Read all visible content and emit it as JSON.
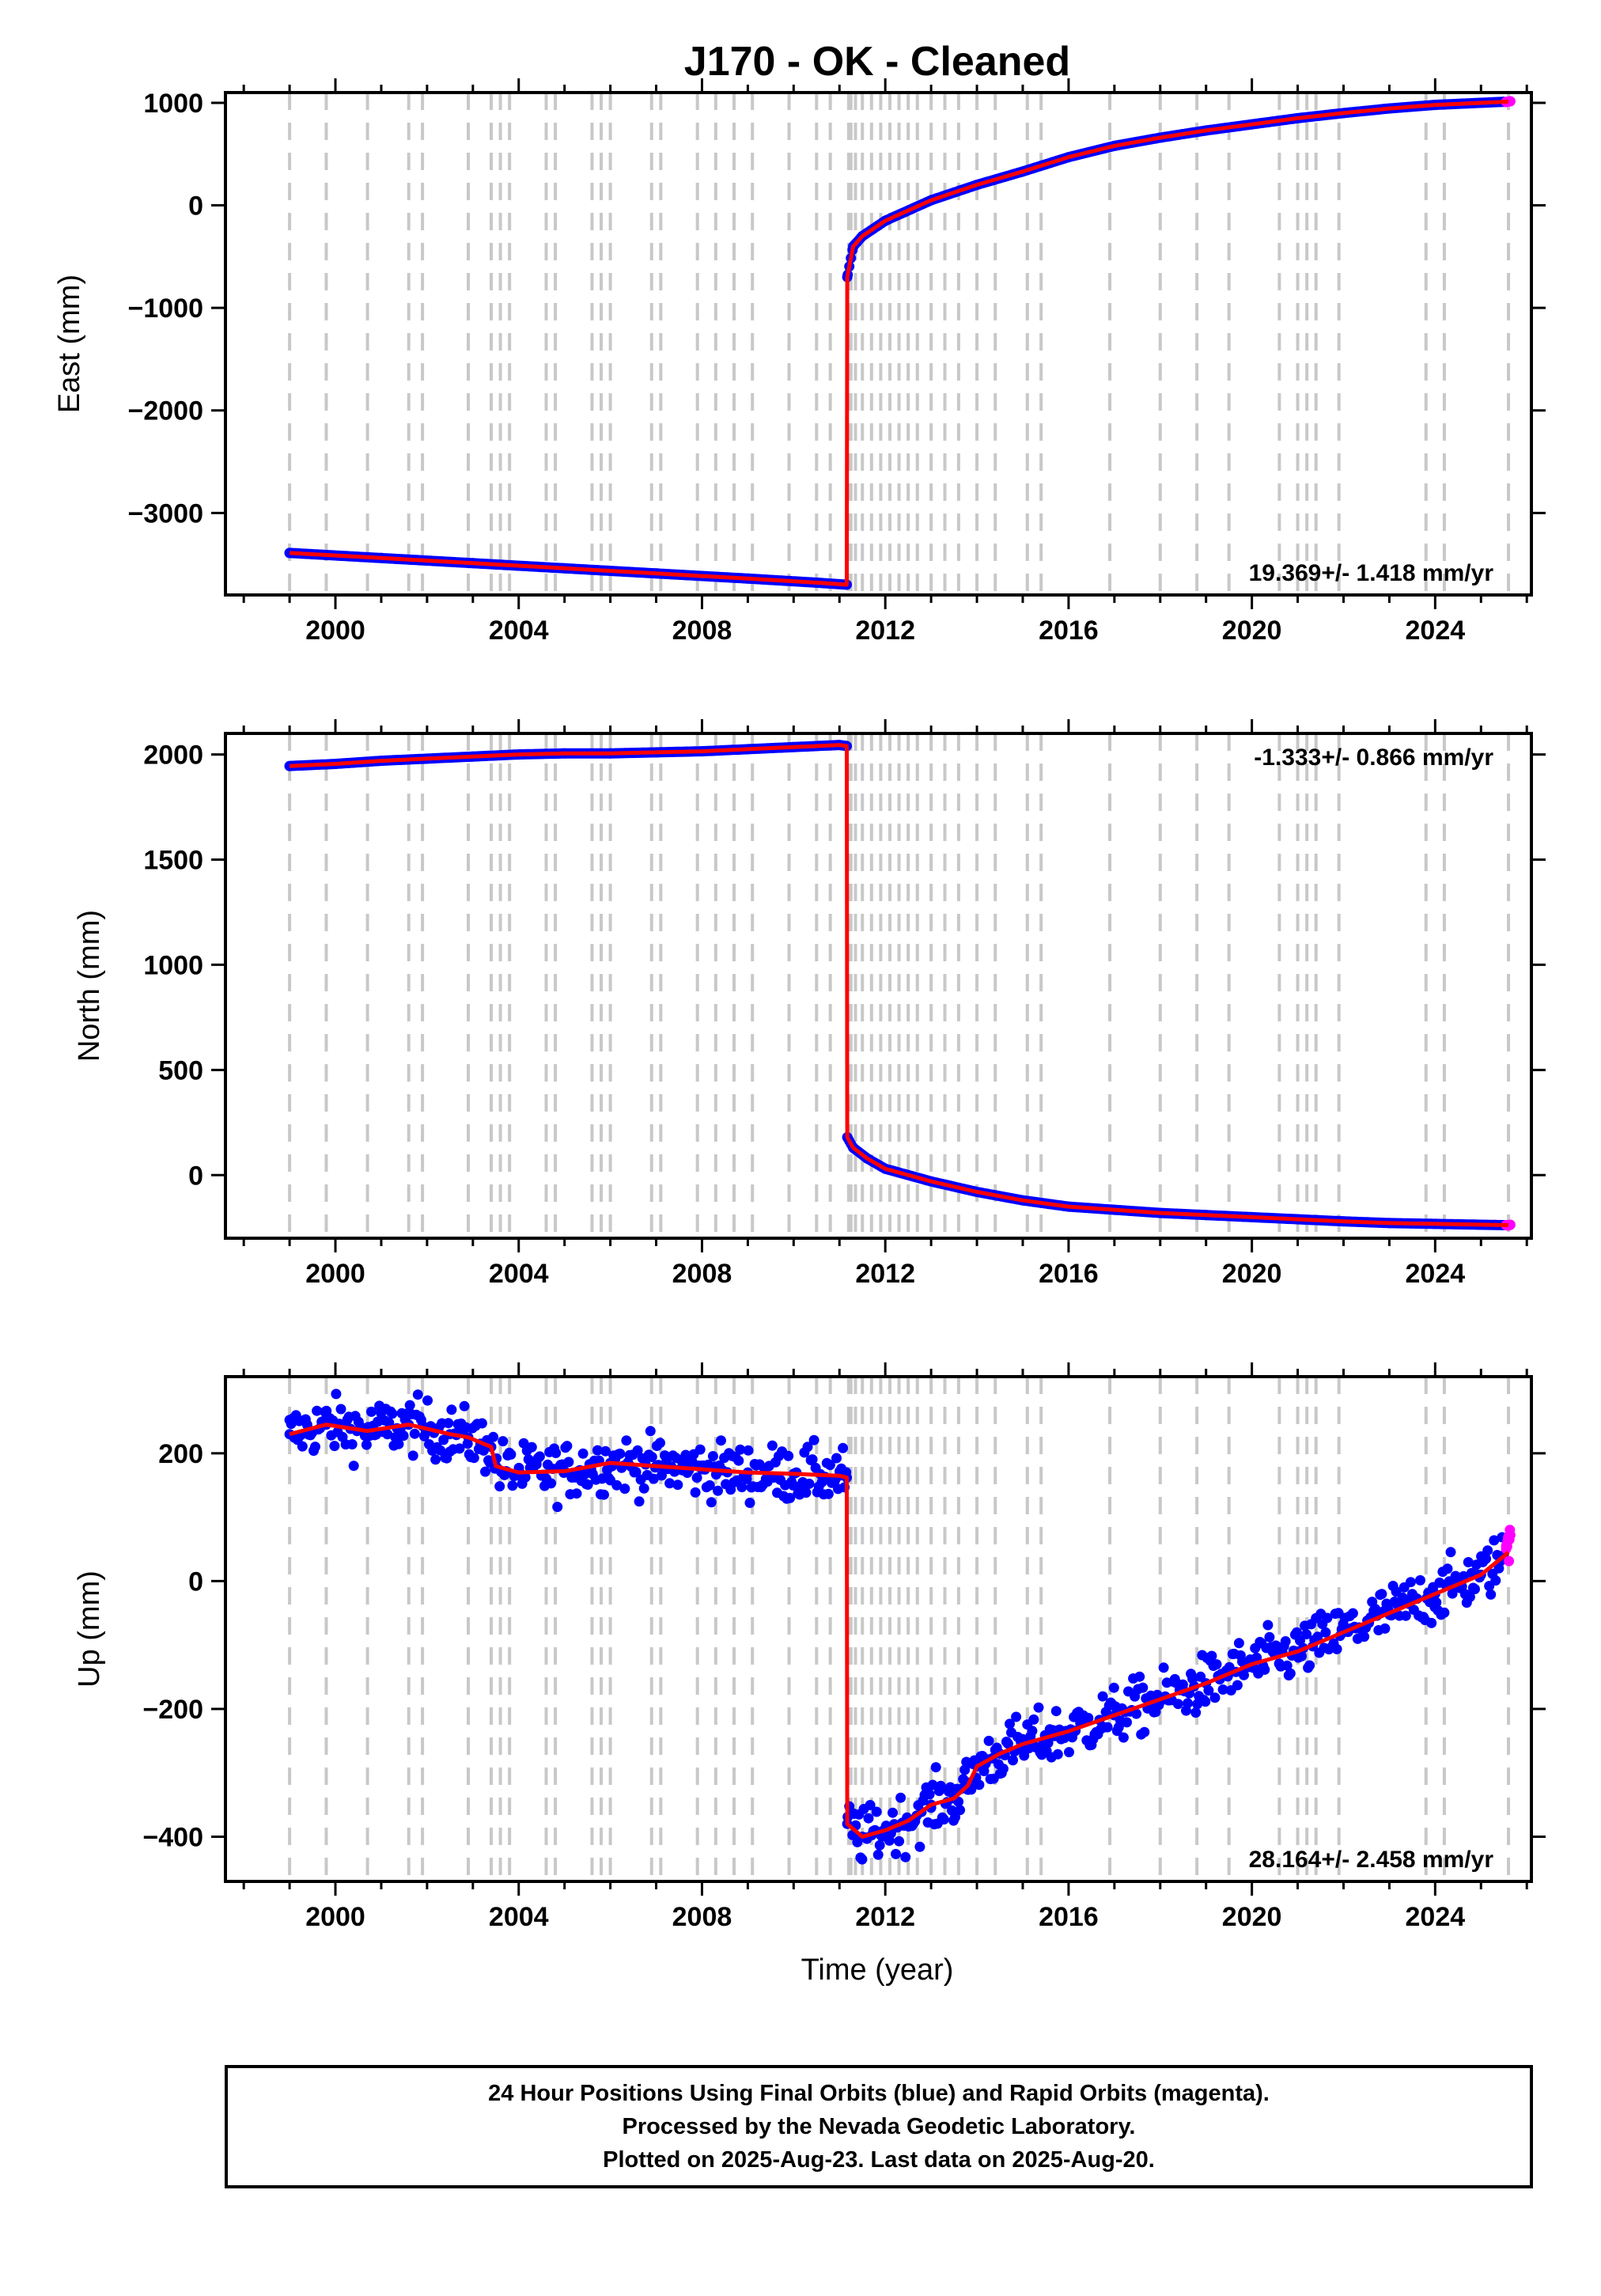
{
  "figure": {
    "title": "J170  - OK - Cleaned",
    "xlabel": "Time (year)",
    "colors": {
      "final_orbits": "#0000ff",
      "rapid_orbits": "#ff00ff",
      "model": "#ff0000",
      "event_lines": "#c8c8c8",
      "frame": "#000000"
    },
    "footer": {
      "line1": "24 Hour Positions Using Final Orbits (blue) and Rapid Orbits (magenta).",
      "line2": "Processed by the Nevada Geodetic Laboratory.",
      "line3": "Plotted on 2025-Aug-23. Last data on 2025-Aug-20."
    }
  },
  "chart_data": [
    {
      "type": "scatter",
      "title": "J170  - OK - Cleaned",
      "xlabel": "",
      "ylabel": "East (mm)",
      "xlim": [
        1997.6,
        2026.1
      ],
      "ylim": [
        -3800,
        1100
      ],
      "xticks": [
        2000,
        2004,
        2008,
        2012,
        2016,
        2020,
        2024
      ],
      "yticks": [
        -3000,
        -2000,
        -1000,
        0,
        1000
      ],
      "grid": false,
      "rate_text": "19.369+/- 1.418 mm/yr",
      "rate_position": "bottom-right",
      "event_lines": [
        1999.0,
        1999.8,
        2000.7,
        2001.6,
        2001.9,
        2002.9,
        2003.4,
        2003.6,
        2003.8,
        2004.6,
        2004.8,
        2005.6,
        2005.8,
        2006.0,
        2006.9,
        2007.1,
        2007.9,
        2008.3,
        2008.7,
        2009.1,
        2009.9,
        2010.5,
        2010.8,
        2011.2,
        2011.25,
        2011.35,
        2011.5,
        2011.7,
        2011.9,
        2012.1,
        2012.3,
        2012.5,
        2012.7,
        2013.0,
        2013.3,
        2013.6,
        2014.0,
        2014.4,
        2015.1,
        2015.4,
        2016.9,
        2018.0,
        2018.8,
        2019.5,
        2020.6,
        2021.0,
        2021.2,
        2021.4,
        2021.9,
        2023.8,
        2024.2,
        2025.6
      ],
      "series": [
        {
          "name": "Final Orbits",
          "color": "#0000ff",
          "x": [
            1999.0,
            2001.0,
            2003.0,
            2005.0,
            2007.0,
            2009.0,
            2010.5,
            2011.16,
            2011.17,
            2011.3,
            2011.5,
            2012.0,
            2013.0,
            2014.0,
            2015.0,
            2016.0,
            2017.0,
            2018.0,
            2019.0,
            2020.0,
            2021.0,
            2022.0,
            2023.0,
            2024.0,
            2025.5
          ],
          "y": [
            -3390,
            -3440,
            -3490,
            -3540,
            -3590,
            -3640,
            -3680,
            -3700,
            -700,
            -400,
            -300,
            -150,
            50,
            200,
            330,
            470,
            580,
            660,
            730,
            790,
            850,
            900,
            945,
            980,
            1010
          ]
        },
        {
          "name": "Rapid Orbits",
          "color": "#ff00ff",
          "x": [
            2025.55,
            2025.6,
            2025.64
          ],
          "y": [
            1008,
            1012,
            1015
          ]
        }
      ],
      "model": {
        "color": "#ff0000",
        "x": [
          1999.0,
          2001.0,
          2003.0,
          2005.0,
          2007.0,
          2009.0,
          2010.5,
          2011.16,
          2011.17,
          2011.3,
          2011.5,
          2012.0,
          2013.0,
          2014.0,
          2015.0,
          2016.0,
          2017.0,
          2018.0,
          2019.0,
          2020.0,
          2021.0,
          2022.0,
          2023.0,
          2024.0,
          2025.6
        ],
        "y": [
          -3390,
          -3440,
          -3490,
          -3540,
          -3590,
          -3640,
          -3680,
          -3700,
          -700,
          -400,
          -300,
          -150,
          50,
          200,
          330,
          470,
          580,
          660,
          730,
          790,
          850,
          900,
          945,
          980,
          1012
        ]
      }
    },
    {
      "type": "scatter",
      "title": "",
      "xlabel": "",
      "ylabel": "North (mm)",
      "xlim": [
        1997.6,
        2026.1
      ],
      "ylim": [
        -300,
        2100
      ],
      "xticks": [
        2000,
        2004,
        2008,
        2012,
        2016,
        2020,
        2024
      ],
      "yticks": [
        0,
        500,
        1000,
        1500,
        2000
      ],
      "grid": false,
      "rate_text": "-1.333+/- 0.866 mm/yr",
      "rate_position": "top-right",
      "event_lines": [
        1999.0,
        1999.8,
        2000.7,
        2001.6,
        2001.9,
        2002.9,
        2003.4,
        2003.6,
        2003.8,
        2004.6,
        2004.8,
        2005.6,
        2005.8,
        2006.0,
        2006.9,
        2007.1,
        2007.9,
        2008.3,
        2008.7,
        2009.1,
        2009.9,
        2010.5,
        2010.8,
        2011.2,
        2011.25,
        2011.35,
        2011.5,
        2011.7,
        2011.9,
        2012.1,
        2012.3,
        2012.5,
        2012.7,
        2013.0,
        2013.3,
        2013.6,
        2014.0,
        2014.4,
        2015.1,
        2015.4,
        2016.9,
        2018.0,
        2018.8,
        2019.5,
        2020.6,
        2021.0,
        2021.2,
        2021.4,
        2021.9,
        2023.8,
        2024.2,
        2025.6
      ],
      "series": [
        {
          "name": "Final Orbits",
          "color": "#0000ff",
          "x": [
            1999.0,
            2000.0,
            2001.0,
            2002.0,
            2003.0,
            2004.0,
            2005.0,
            2006.0,
            2007.0,
            2008.0,
            2009.0,
            2010.0,
            2011.0,
            2011.16,
            2011.17,
            2011.3,
            2011.6,
            2012.0,
            2013.0,
            2014.0,
            2015.0,
            2016.0,
            2017.0,
            2018.0,
            2019.0,
            2020.0,
            2021.0,
            2022.0,
            2023.0,
            2024.0,
            2025.5
          ],
          "y": [
            1945,
            1955,
            1970,
            1980,
            1990,
            2000,
            2005,
            2005,
            2010,
            2015,
            2025,
            2035,
            2045,
            2040,
            180,
            130,
            80,
            30,
            -30,
            -80,
            -120,
            -150,
            -165,
            -180,
            -190,
            -200,
            -210,
            -220,
            -228,
            -232,
            -238
          ]
        },
        {
          "name": "Rapid Orbits",
          "color": "#ff00ff",
          "x": [
            2025.55,
            2025.6,
            2025.64
          ],
          "y": [
            -238,
            -240,
            -236
          ]
        }
      ],
      "model": {
        "color": "#ff0000",
        "x": [
          1999.0,
          2000.0,
          2001.0,
          2002.0,
          2003.0,
          2004.0,
          2005.0,
          2006.0,
          2007.0,
          2008.0,
          2009.0,
          2010.0,
          2011.0,
          2011.16,
          2011.17,
          2011.3,
          2011.6,
          2012.0,
          2013.0,
          2014.0,
          2015.0,
          2016.0,
          2017.0,
          2018.0,
          2019.0,
          2020.0,
          2021.0,
          2022.0,
          2023.0,
          2024.0,
          2025.6
        ],
        "y": [
          1945,
          1955,
          1970,
          1980,
          1990,
          2000,
          2005,
          2005,
          2010,
          2015,
          2025,
          2035,
          2045,
          2040,
          180,
          130,
          80,
          30,
          -30,
          -80,
          -120,
          -150,
          -165,
          -180,
          -190,
          -200,
          -210,
          -220,
          -228,
          -232,
          -238
        ]
      }
    },
    {
      "type": "scatter",
      "title": "",
      "xlabel": "Time (year)",
      "ylabel": "Up (mm)",
      "xlim": [
        1997.6,
        2026.1
      ],
      "ylim": [
        -470,
        320
      ],
      "xticks": [
        2000,
        2004,
        2008,
        2012,
        2016,
        2020,
        2024
      ],
      "yticks": [
        -400,
        -200,
        0,
        200
      ],
      "grid": false,
      "rate_text": "28.164+/- 2.458 mm/yr",
      "rate_position": "bottom-right",
      "event_lines": [
        1999.0,
        1999.8,
        2000.7,
        2001.6,
        2001.9,
        2002.9,
        2003.4,
        2003.6,
        2003.8,
        2004.6,
        2004.8,
        2005.6,
        2005.8,
        2006.0,
        2006.9,
        2007.1,
        2007.9,
        2008.3,
        2008.7,
        2009.1,
        2009.9,
        2010.5,
        2010.8,
        2011.2,
        2011.25,
        2011.35,
        2011.5,
        2011.7,
        2011.9,
        2012.1,
        2012.3,
        2012.5,
        2012.7,
        2013.0,
        2013.3,
        2013.6,
        2014.0,
        2014.4,
        2015.1,
        2015.4,
        2016.9,
        2018.0,
        2018.8,
        2019.5,
        2020.6,
        2021.0,
        2021.2,
        2021.4,
        2021.9,
        2023.8,
        2024.2,
        2025.6
      ],
      "scatter_spread": 22,
      "series": [
        {
          "name": "Final Orbits",
          "color": "#0000ff",
          "x": [
            1999.0,
            1999.8,
            2000.7,
            2001.6,
            2002.5,
            2002.9,
            2003.4,
            2003.5,
            2004.0,
            2005.0,
            2006.0,
            2007.0,
            2008.0,
            2009.0,
            2010.0,
            2011.0,
            2011.16,
            2011.17,
            2011.5,
            2012.0,
            2012.5,
            2013.0,
            2013.5,
            2013.8,
            2014.0,
            2014.5,
            2015.0,
            2016.0,
            2017.0,
            2018.0,
            2019.0,
            2020.0,
            2021.0,
            2022.0,
            2023.0,
            2024.0,
            2025.0,
            2025.5
          ],
          "y": [
            230,
            245,
            235,
            245,
            230,
            225,
            210,
            180,
            170,
            172,
            185,
            180,
            175,
            170,
            168,
            165,
            162,
            -380,
            -400,
            -390,
            -375,
            -350,
            -340,
            -320,
            -290,
            -270,
            -255,
            -235,
            -210,
            -185,
            -160,
            -130,
            -110,
            -80,
            -50,
            -20,
            10,
            35
          ]
        },
        {
          "name": "Rapid Orbits",
          "color": "#ff00ff",
          "x": [
            2025.55,
            2025.58,
            2025.6,
            2025.62,
            2025.64
          ],
          "y": [
            55,
            62,
            70,
            65,
            72
          ]
        }
      ],
      "model": {
        "color": "#ff0000",
        "x": [
          1999.0,
          1999.8,
          2000.7,
          2001.6,
          2002.5,
          2002.9,
          2003.4,
          2003.5,
          2004.0,
          2005.0,
          2006.0,
          2007.0,
          2008.0,
          2009.0,
          2010.0,
          2011.0,
          2011.16,
          2011.17,
          2011.5,
          2012.0,
          2012.5,
          2013.0,
          2013.5,
          2013.8,
          2014.0,
          2014.5,
          2015.0,
          2016.0,
          2017.0,
          2018.0,
          2019.0,
          2020.0,
          2021.0,
          2022.0,
          2023.0,
          2024.0,
          2025.0,
          2025.6
        ],
        "y": [
          230,
          245,
          235,
          245,
          230,
          225,
          210,
          180,
          170,
          172,
          185,
          180,
          175,
          170,
          168,
          165,
          162,
          -380,
          -400,
          -390,
          -375,
          -350,
          -340,
          -320,
          -290,
          -270,
          -255,
          -235,
          -210,
          -185,
          -160,
          -130,
          -110,
          -80,
          -50,
          -20,
          10,
          45
        ]
      }
    }
  ]
}
